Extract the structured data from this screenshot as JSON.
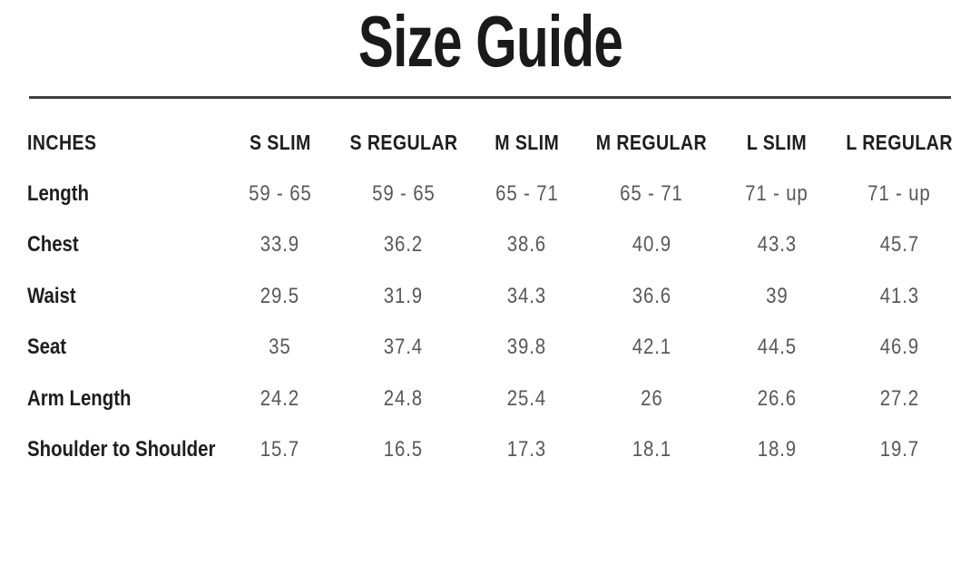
{
  "page": {
    "title": "Size Guide"
  },
  "table": {
    "unit_label": "INCHES",
    "columns": [
      "S SLIM",
      "S REGULAR",
      "M SLIM",
      "M REGULAR",
      "L SLIM",
      "L REGULAR"
    ],
    "rows": [
      {
        "label": "Length",
        "values": [
          "59 - 65",
          "59 - 65",
          "65 - 71",
          "65 - 71",
          "71 - up",
          "71 - up"
        ]
      },
      {
        "label": "Chest",
        "values": [
          "33.9",
          "36.2",
          "38.6",
          "40.9",
          "43.3",
          "45.7"
        ]
      },
      {
        "label": "Waist",
        "values": [
          "29.5",
          "31.9",
          "34.3",
          "36.6",
          "39",
          "41.3"
        ]
      },
      {
        "label": "Seat",
        "values": [
          "35",
          "37.4",
          "39.8",
          "42.1",
          "44.5",
          "46.9"
        ]
      },
      {
        "label": "Arm Length",
        "values": [
          "24.2",
          "24.8",
          "25.4",
          "26",
          "26.6",
          "27.2"
        ]
      },
      {
        "label": "Shoulder to Shoulder",
        "values": [
          "15.7",
          "16.5",
          "17.3",
          "18.1",
          "18.9",
          "19.7"
        ]
      }
    ]
  },
  "colors": {
    "heading": "#1a1a1a",
    "label": "#1e1e1e",
    "value": "#58585b",
    "divider": "#3e3e3e",
    "bg": "#ffffff"
  }
}
